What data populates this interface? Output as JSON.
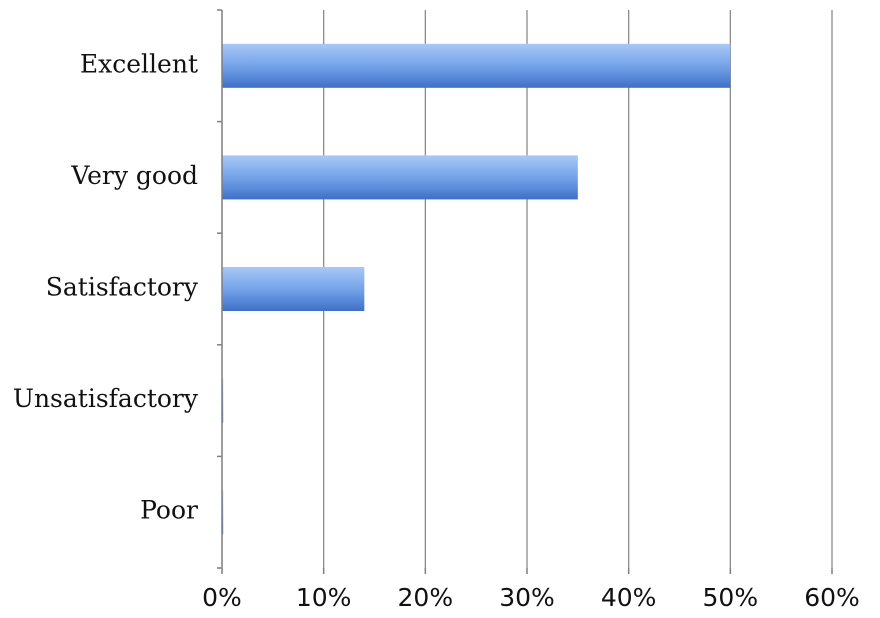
{
  "chart_data": {
    "type": "bar",
    "orientation": "horizontal",
    "title": "",
    "xlabel": "",
    "ylabel": "",
    "categories": [
      "Excellent",
      "Very good",
      "Satisfactory",
      "Unsatisfactory",
      "Poor"
    ],
    "values": [
      50,
      35,
      14,
      0,
      0
    ],
    "value_unit": "%",
    "xlim": [
      0,
      60
    ],
    "x_ticks": [
      "0%",
      "10%",
      "20%",
      "30%",
      "40%",
      "50%",
      "60%"
    ],
    "grid": true,
    "legend": "none",
    "colors": {
      "bar_light": "#a9c8f6",
      "bar_mid": "#6f9fe7",
      "bar_dark": "#3f6fc6",
      "gridline": "#8c8c8c",
      "axis": "#7f7f7f"
    }
  }
}
